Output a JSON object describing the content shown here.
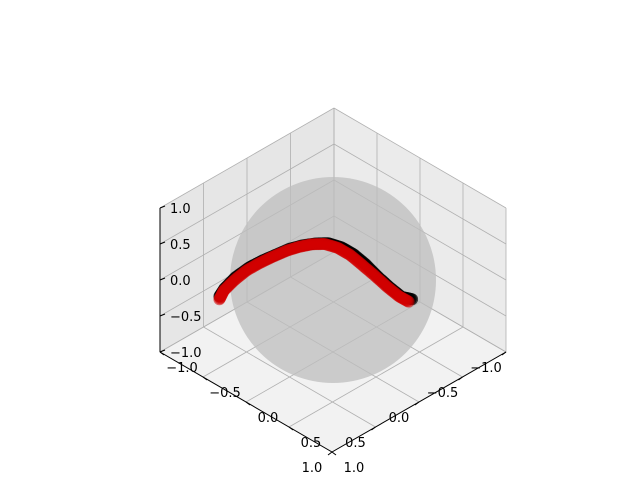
{
  "colors": {
    "pane_light": "#f2f2f2",
    "pane_mid": "#e6e6e6",
    "pane_dark": "#ebebeb",
    "grid": "#b0b0b0",
    "sphere": "#bdbdbd",
    "curve_a": "#000000",
    "curve_b": "#d40000"
  },
  "chart_data": {
    "type": "scatter",
    "projection": "3d",
    "view": {
      "elevation_deg": 50,
      "azimuth_deg": 45
    },
    "grid": true,
    "xlim": [
      -1.0,
      1.0
    ],
    "ylim": [
      -1.0,
      1.0
    ],
    "zlim": [
      -1.0,
      1.0
    ],
    "x_ticks": [
      {
        "value": 1.0,
        "label": "1.0"
      },
      {
        "value": 0.5,
        "label": "0.5"
      },
      {
        "value": 0.0,
        "label": "0.0"
      },
      {
        "value": -0.5,
        "label": "−0.5"
      },
      {
        "value": -1.0,
        "label": "−1.0"
      }
    ],
    "y_ticks": [
      {
        "value": -1.0,
        "label": "−1.0"
      },
      {
        "value": -0.5,
        "label": "−0.5"
      },
      {
        "value": 0.0,
        "label": "0.0"
      },
      {
        "value": 0.5,
        "label": "0.5"
      },
      {
        "value": 1.0,
        "label": "1.0"
      }
    ],
    "z_ticks": [
      {
        "value": 1.0,
        "label": "1.0"
      },
      {
        "value": 0.5,
        "label": "0.5"
      },
      {
        "value": 0.0,
        "label": "0.0"
      },
      {
        "value": -0.5,
        "label": "−0.5"
      },
      {
        "value": -1.0,
        "label": "−1.0"
      }
    ],
    "sphere": {
      "radius": 1.0,
      "center": [
        0,
        0,
        0
      ]
    },
    "series": [
      {
        "color": "#000000",
        "points": [
          [
            0.0,
            0.92,
            0.4
          ],
          [
            0.08,
            0.88,
            0.46
          ],
          [
            0.14,
            0.8,
            0.58
          ],
          [
            0.18,
            0.7,
            0.69
          ],
          [
            0.2,
            0.58,
            0.79
          ],
          [
            0.22,
            0.46,
            0.86
          ],
          [
            0.25,
            0.35,
            0.9
          ],
          [
            0.3,
            0.25,
            0.92
          ],
          [
            0.37,
            0.17,
            0.91
          ],
          [
            0.45,
            0.1,
            0.89
          ],
          [
            0.53,
            0.03,
            0.85
          ],
          [
            0.62,
            -0.04,
            0.78
          ],
          [
            0.7,
            -0.11,
            0.71
          ],
          [
            0.77,
            -0.19,
            0.61
          ],
          [
            0.84,
            -0.28,
            0.46
          ],
          [
            0.89,
            -0.36,
            0.28
          ],
          [
            0.9,
            -0.41,
            0.14
          ]
        ]
      },
      {
        "color": "#d40000",
        "points": [
          [
            0.05,
            0.93,
            0.38
          ],
          [
            0.11,
            0.88,
            0.46
          ],
          [
            0.17,
            0.8,
            0.58
          ],
          [
            0.21,
            0.7,
            0.69
          ],
          [
            0.24,
            0.58,
            0.78
          ],
          [
            0.26,
            0.46,
            0.85
          ],
          [
            0.29,
            0.35,
            0.89
          ],
          [
            0.34,
            0.25,
            0.91
          ],
          [
            0.41,
            0.17,
            0.9
          ],
          [
            0.49,
            0.1,
            0.87
          ],
          [
            0.57,
            0.03,
            0.82
          ],
          [
            0.66,
            -0.04,
            0.75
          ],
          [
            0.74,
            -0.11,
            0.67
          ],
          [
            0.81,
            -0.19,
            0.56
          ],
          [
            0.87,
            -0.27,
            0.41
          ],
          [
            0.91,
            -0.35,
            0.24
          ],
          [
            0.92,
            -0.39,
            0.1
          ]
        ]
      }
    ]
  }
}
